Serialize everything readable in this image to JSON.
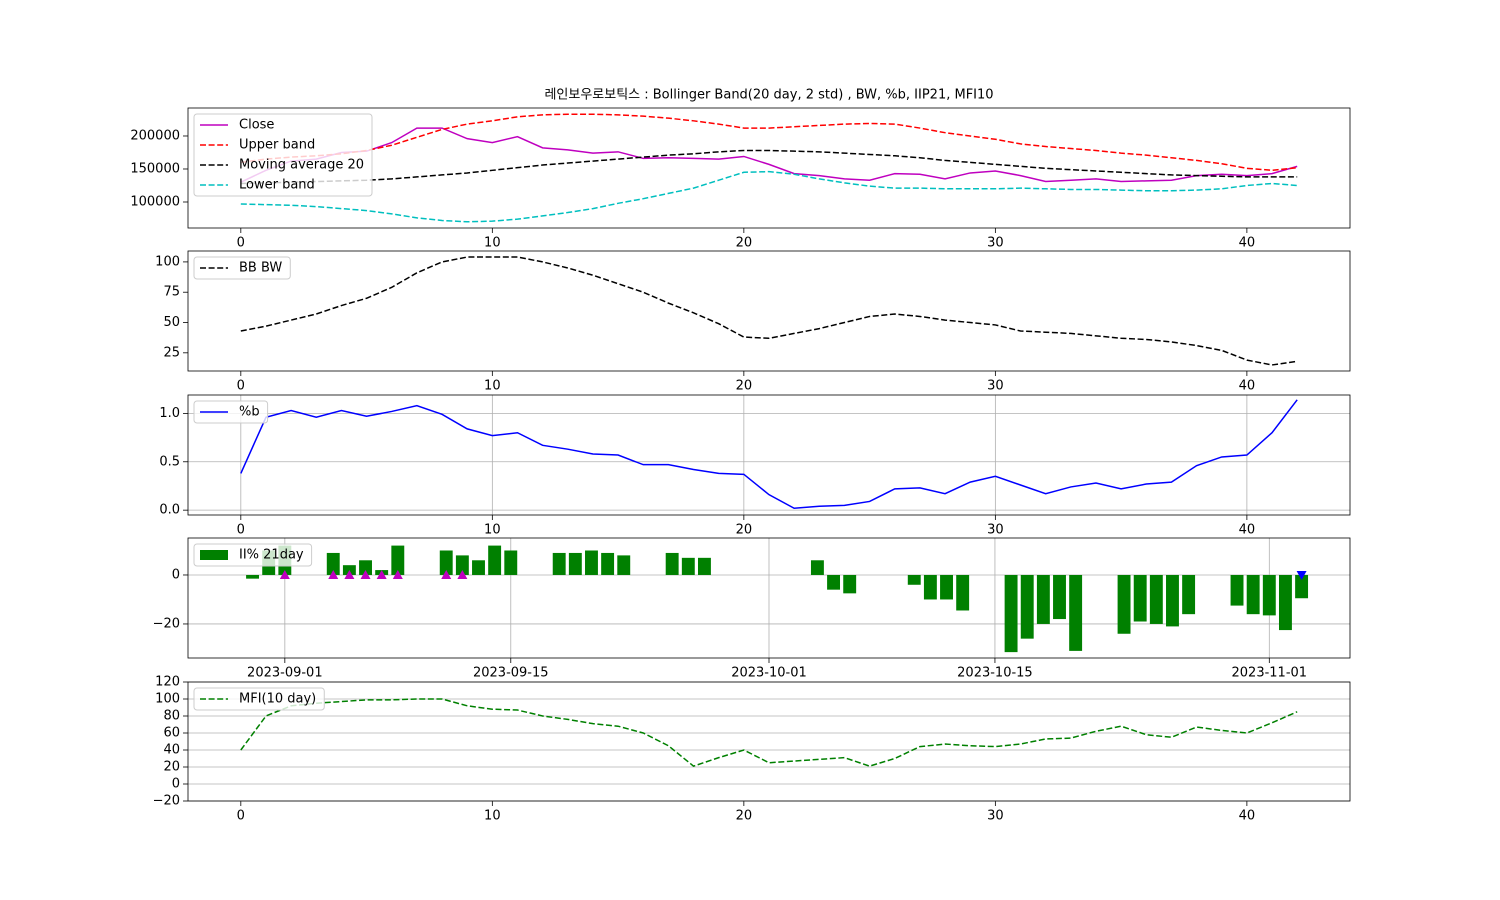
{
  "chart_data": [
    {
      "type": "line",
      "title": "레인보우로보틱스 : Bollinger Band(20 day, 2 std) , BW, %b, IIP21, MFI10",
      "x": [
        0,
        1,
        2,
        3,
        4,
        5,
        6,
        7,
        8,
        9,
        10,
        11,
        12,
        13,
        14,
        15,
        16,
        17,
        18,
        19,
        20,
        21,
        22,
        23,
        24,
        25,
        26,
        27,
        28,
        29,
        30,
        31,
        32,
        33,
        34,
        35,
        36,
        37,
        38,
        39,
        40,
        41,
        42
      ],
      "series": [
        {
          "name": "Close",
          "color": "#bf00bf",
          "linestyle": "solid",
          "values": [
            130000,
            148000,
            162000,
            165000,
            175000,
            177000,
            190000,
            212000,
            212000,
            196000,
            190000,
            199000,
            182000,
            179000,
            174000,
            176000,
            166000,
            167000,
            166000,
            165000,
            169000,
            157000,
            143000,
            140000,
            135000,
            133000,
            143000,
            142000,
            135000,
            144000,
            147000,
            140000,
            131000,
            133000,
            135000,
            131000,
            132000,
            133000,
            140000,
            142000,
            140000,
            143000,
            154000
          ]
        },
        {
          "name": "Upper band",
          "color": "#ff0000",
          "linestyle": "dashed",
          "values": [
            160000,
            165000,
            168000,
            170000,
            173000,
            178000,
            186000,
            198000,
            210000,
            218000,
            223000,
            229000,
            232000,
            233000,
            233000,
            232000,
            230000,
            227000,
            223000,
            218000,
            212000,
            212000,
            214000,
            216000,
            218000,
            219000,
            218000,
            212000,
            205000,
            200000,
            195000,
            188000,
            184000,
            181000,
            178000,
            174000,
            171000,
            167000,
            163000,
            158000,
            151000,
            148000,
            152000
          ]
        },
        {
          "name": "Moving average 20",
          "color": "#000000",
          "linestyle": "dashed",
          "values": [
            128000,
            129000,
            130000,
            131000,
            132000,
            133000,
            135000,
            138000,
            141000,
            144000,
            148000,
            152000,
            156000,
            159000,
            162000,
            165000,
            168000,
            171000,
            173000,
            176000,
            178000,
            178000,
            177000,
            176000,
            174000,
            172000,
            170000,
            167000,
            163000,
            160000,
            157000,
            154000,
            151000,
            149000,
            147000,
            145000,
            143000,
            141000,
            140000,
            139000,
            138000,
            138000,
            138000
          ]
        },
        {
          "name": "Lower band",
          "color": "#00bfbf",
          "linestyle": "dashed",
          "values": [
            97000,
            96000,
            95000,
            93000,
            90000,
            87000,
            82000,
            76000,
            72000,
            70000,
            71000,
            74000,
            79000,
            84000,
            90000,
            98000,
            105000,
            113000,
            121000,
            133000,
            145000,
            146000,
            142000,
            135000,
            129000,
            124000,
            121000,
            121000,
            120000,
            120000,
            120000,
            121000,
            120000,
            119000,
            119000,
            118000,
            117000,
            117000,
            118000,
            120000,
            125000,
            128000,
            125000
          ]
        }
      ],
      "xlim": [
        -2.1,
        44.1
      ],
      "ylim": [
        60600,
        242400
      ],
      "xticks": [
        0,
        10,
        20,
        30,
        40
      ],
      "yticks": [
        100000,
        150000,
        200000
      ],
      "grid": false,
      "legend": "upper left"
    },
    {
      "type": "line",
      "x": [
        0,
        1,
        2,
        3,
        4,
        5,
        6,
        7,
        8,
        9,
        10,
        11,
        12,
        13,
        14,
        15,
        16,
        17,
        18,
        19,
        20,
        21,
        22,
        23,
        24,
        25,
        26,
        27,
        28,
        29,
        30,
        31,
        32,
        33,
        34,
        35,
        36,
        37,
        38,
        39,
        40,
        41,
        42
      ],
      "series": [
        {
          "name": "BB BW",
          "color": "#000000",
          "linestyle": "dashed",
          "values": [
            43,
            47,
            52,
            57,
            64,
            70,
            79,
            91,
            100,
            104,
            104,
            104,
            100,
            95,
            89,
            82,
            75,
            66,
            58,
            49,
            38,
            37,
            41,
            45,
            50,
            55,
            57,
            55,
            52,
            50,
            48,
            43,
            42,
            41,
            39,
            37,
            36,
            34,
            31,
            27,
            19,
            15,
            18
          ]
        }
      ],
      "xlim": [
        -2.1,
        44.1
      ],
      "ylim": [
        10,
        109
      ],
      "xticks": [
        0,
        10,
        20,
        30,
        40
      ],
      "yticks": [
        25,
        50,
        75,
        100
      ],
      "grid": false,
      "legend": "upper left"
    },
    {
      "type": "line",
      "x": [
        0,
        1,
        2,
        3,
        4,
        5,
        6,
        7,
        8,
        9,
        10,
        11,
        12,
        13,
        14,
        15,
        16,
        17,
        18,
        19,
        20,
        21,
        22,
        23,
        24,
        25,
        26,
        27,
        28,
        29,
        30,
        31,
        32,
        33,
        34,
        35,
        36,
        37,
        38,
        39,
        40,
        41,
        42
      ],
      "series": [
        {
          "name": "%b",
          "color": "#0000ff",
          "linestyle": "solid",
          "values": [
            0.38,
            0.96,
            1.03,
            0.96,
            1.03,
            0.97,
            1.02,
            1.08,
            0.99,
            0.84,
            0.77,
            0.8,
            0.67,
            0.63,
            0.58,
            0.57,
            0.47,
            0.47,
            0.42,
            0.38,
            0.37,
            0.16,
            0.02,
            0.04,
            0.05,
            0.09,
            0.22,
            0.23,
            0.17,
            0.29,
            0.35,
            0.26,
            0.17,
            0.24,
            0.28,
            0.22,
            0.27,
            0.29,
            0.46,
            0.55,
            0.57,
            0.8,
            1.14
          ]
        }
      ],
      "xlim": [
        -2.1,
        44.1
      ],
      "ylim": [
        -0.05,
        1.19
      ],
      "xticks": [
        0,
        10,
        20,
        30,
        40
      ],
      "yticks": [
        {
          "value": 0,
          "label": "0.0"
        },
        0.5,
        {
          "value": 1,
          "label": "1.0"
        }
      ],
      "grid": true,
      "legend": "upper left"
    },
    {
      "type": "bar",
      "x": [
        "2023-08-30",
        "2023-08-31",
        "2023-09-01",
        "2023-09-04",
        "2023-09-05",
        "2023-09-06",
        "2023-09-07",
        "2023-09-08",
        "2023-09-11",
        "2023-09-12",
        "2023-09-13",
        "2023-09-14",
        "2023-09-15",
        "2023-09-18",
        "2023-09-19",
        "2023-09-20",
        "2023-09-21",
        "2023-09-22",
        "2023-09-25",
        "2023-09-26",
        "2023-09-27",
        "2023-10-04",
        "2023-10-05",
        "2023-10-06",
        "2023-10-10",
        "2023-10-11",
        "2023-10-12",
        "2023-10-13",
        "2023-10-16",
        "2023-10-17",
        "2023-10-18",
        "2023-10-19",
        "2023-10-20",
        "2023-10-23",
        "2023-10-24",
        "2023-10-25",
        "2023-10-26",
        "2023-10-27",
        "2023-10-30",
        "2023-10-31",
        "2023-11-01",
        "2023-11-02",
        "2023-11-03"
      ],
      "series": [
        {
          "name": "II% 21day",
          "color": "#008000",
          "values": [
            -1.5,
            10,
            12,
            9,
            4,
            6,
            2,
            12,
            10,
            8,
            6,
            12,
            10,
            9,
            9,
            10,
            9,
            8,
            9,
            7,
            7,
            6,
            -6,
            -7.5,
            -4,
            -10,
            -10,
            -14.5,
            -31.5,
            -26,
            -20,
            -18,
            -31,
            -24,
            -19,
            -20,
            -21,
            -16,
            -12.5,
            -16,
            -16.5,
            -22.5,
            -9.5
          ]
        }
      ],
      "markers": [
        {
          "marker": "up",
          "color": "#bf00bf",
          "x": [
            "2023-09-01",
            "2023-09-04",
            "2023-09-05",
            "2023-09-06",
            "2023-09-07",
            "2023-09-08",
            "2023-09-11",
            "2023-09-12"
          ],
          "values": [
            0,
            0,
            0,
            0,
            0,
            0,
            0,
            0
          ]
        },
        {
          "marker": "down",
          "color": "#0000ff",
          "x": [
            "2023-11-03"
          ],
          "values": [
            0
          ]
        }
      ],
      "xlim": [
        "2023-08-26",
        "2023-11-06"
      ],
      "ylim": [
        -33.9,
        15.1
      ],
      "xticks": [
        "2023-09-01",
        "2023-09-15",
        "2023-10-01",
        "2023-10-15",
        "2023-11-01"
      ],
      "yticks": [
        {
          "value": -20,
          "label": "−20"
        },
        0
      ],
      "grid": true,
      "legend": "upper left"
    },
    {
      "type": "line",
      "x": [
        0,
        1,
        2,
        3,
        4,
        5,
        6,
        7,
        8,
        9,
        10,
        11,
        12,
        13,
        14,
        15,
        16,
        17,
        18,
        19,
        20,
        21,
        22,
        23,
        24,
        25,
        26,
        27,
        28,
        29,
        30,
        31,
        32,
        33,
        34,
        35,
        36,
        37,
        38,
        39,
        40,
        41,
        42
      ],
      "series": [
        {
          "name": "MFI(10 day)",
          "color": "#008000",
          "linestyle": "dashed",
          "values": [
            40,
            80,
            92,
            95,
            97,
            99,
            99,
            100,
            100,
            92,
            88,
            87,
            80,
            76,
            71,
            68,
            60,
            45,
            21,
            31,
            40,
            25,
            27,
            29,
            31,
            21,
            30,
            44,
            47,
            45,
            44,
            47,
            53,
            54,
            62,
            68,
            58,
            55,
            67,
            63,
            60,
            72,
            85
          ]
        }
      ],
      "xlim": [
        -2.1,
        44.1
      ],
      "ylim": [
        -20,
        120
      ],
      "xticks": [
        0,
        10,
        20,
        30,
        40
      ],
      "yticks": [
        {
          "value": -20,
          "label": "−20"
        },
        0,
        20,
        40,
        60,
        80,
        100,
        120
      ],
      "grid": "y",
      "legend": "upper left"
    }
  ]
}
